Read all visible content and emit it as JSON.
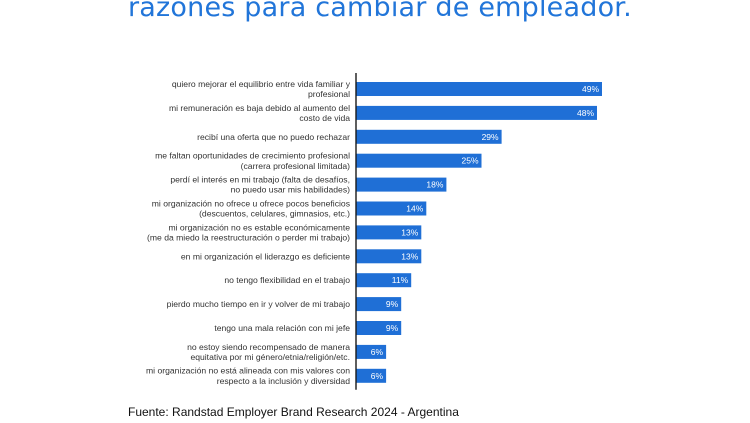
{
  "header": {
    "title": "razones para cambiar de empleador."
  },
  "footer": {
    "source": "Fuente: Randstad Employer Brand Research 2024 - Argentina"
  },
  "chart_data": {
    "type": "bar",
    "orientation": "horizontal",
    "categories": [
      [
        "quiero mejorar el equilibrio entre vida familiar y",
        "profesional"
      ],
      [
        "mi remuneración es baja debido al aumento del",
        "costo de vida"
      ],
      [
        "recibí una oferta que no puedo rechazar"
      ],
      [
        "me faltan oportunidades de crecimiento profesional",
        "(carrera profesional limitada)"
      ],
      [
        "perdí el interés en mi trabajo (falta de desafíos,",
        "no puedo usar mis habilidades)"
      ],
      [
        "mi organización no ofrece u ofrece pocos beneficios",
        "(descuentos, celulares, gimnasios, etc.)"
      ],
      [
        "mi organización no es estable económicamente",
        "(me da miedo la reestructuración o perder mi trabajo)"
      ],
      [
        "en mi organización el liderazgo es deficiente"
      ],
      [
        "no tengo flexibilidad en el trabajo"
      ],
      [
        "pierdo mucho tiempo en ir y volver de mi trabajo"
      ],
      [
        "tengo una mala relación con mi jefe"
      ],
      [
        "no estoy siendo recompensado de manera",
        "equitativa por mi género/etnia/religión/etc."
      ],
      [
        "mi organización no está alineada con mis valores con",
        "respecto a la inclusión y diversidad"
      ]
    ],
    "values": [
      49,
      48,
      29,
      25,
      18,
      14,
      13,
      13,
      11,
      9,
      9,
      6,
      6
    ],
    "data_labels": [
      "49%",
      "48%",
      "29%",
      "25%",
      "18%",
      "14%",
      "13%",
      "13%",
      "11%",
      "9%",
      "9%",
      "6%",
      "6%"
    ],
    "unit": "%",
    "xlim": [
      0,
      50
    ],
    "grid": false,
    "legend": "none",
    "colors": {
      "bar": "#1f6fd6",
      "axis": "#1a1a1a",
      "title": "#2175d9"
    }
  }
}
